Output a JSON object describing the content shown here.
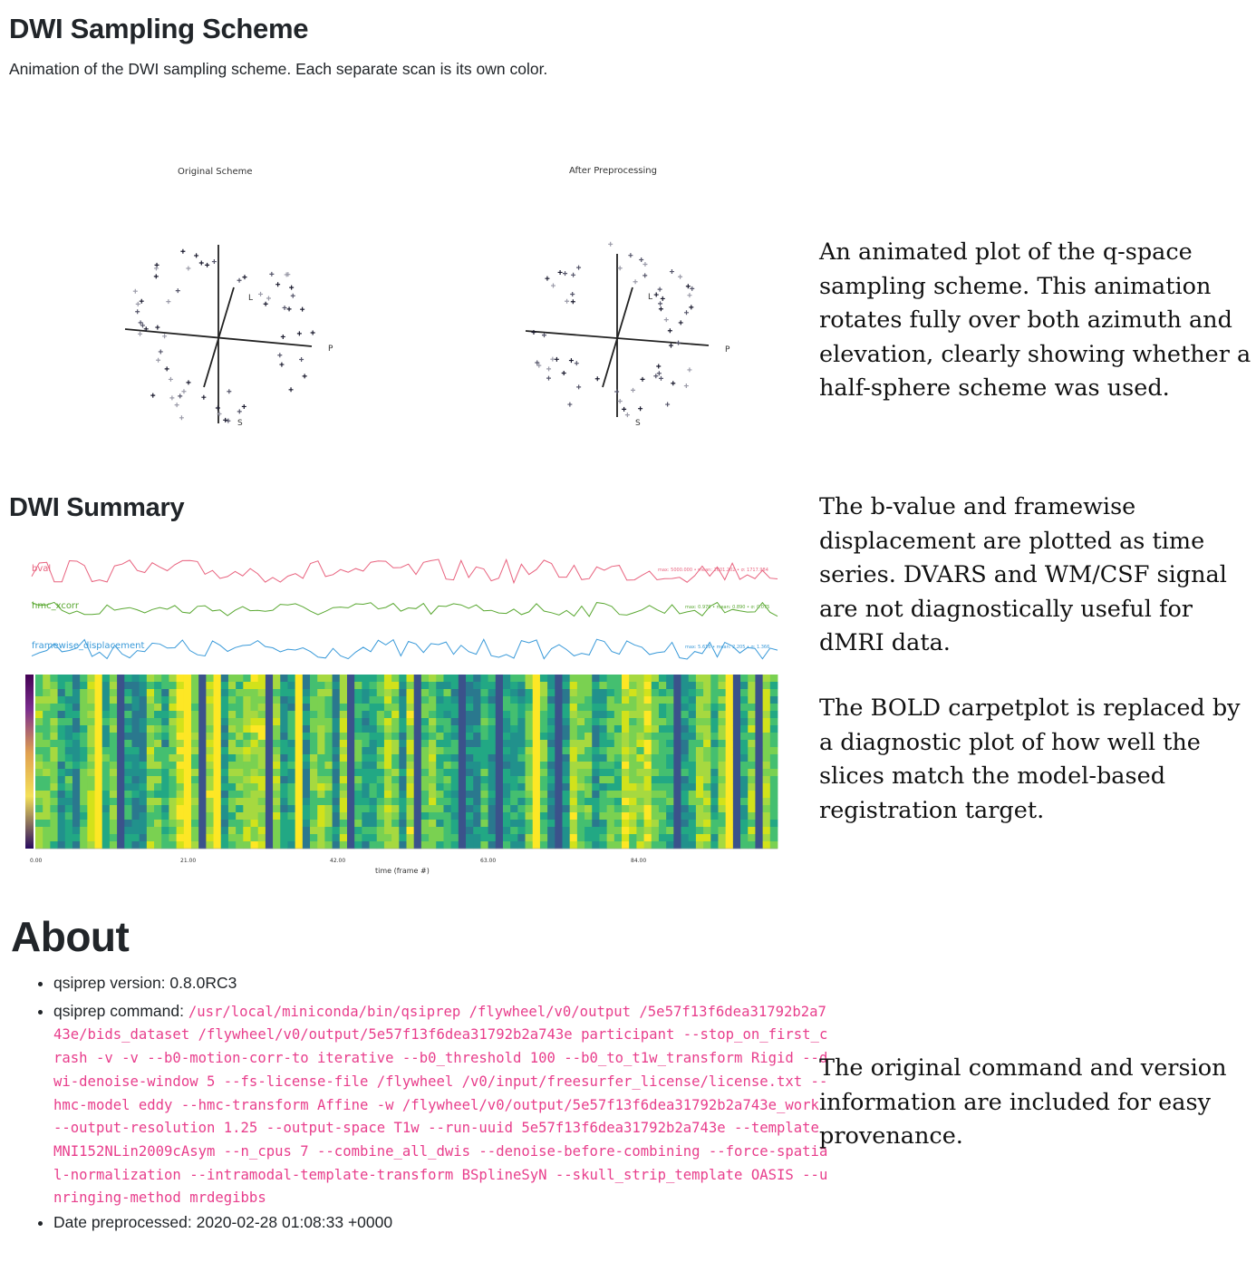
{
  "sampling": {
    "heading": "DWI Sampling Scheme",
    "description": "Animation of the DWI sampling scheme. Each separate scan is its own color.",
    "left_title": "Original Scheme",
    "right_title": "After Preprocessing",
    "axis_labels": {
      "p": "P",
      "l": "L",
      "s": "S"
    },
    "note": "An animated plot of the q-space sampling scheme. This animation rotates fully over both azimuth and elevation, clearly showing whether a half-sphere scheme was used."
  },
  "summary": {
    "heading": "DWI Summary",
    "note1": "The b-value and framewise displacement are plotted as time series. DVARS and WM/CSF signal are not diagnostically useful for dMRI data.",
    "note2": "The BOLD carpetplot is replaced by a diagnostic plot of how well the slices match the model-based registration target.",
    "series": [
      {
        "name": "bval",
        "stats": "max: 5000.000 • mean: 2601.202 • σ: 1717.984",
        "color": "#e8627e"
      },
      {
        "name": "hmc_xcorr",
        "stats": "max: 0.979 • mean: 0.890 • σ: 0.075",
        "color": "#5aa832"
      },
      {
        "name": "framewise_displacement",
        "stats": "max: 5.616 • mean: 2.205 • σ: 1.366",
        "color": "#3a9ad9"
      }
    ],
    "xlabel": "time (frame #)",
    "xticks": [
      "0.00",
      "21.00",
      "42.00",
      "63.00",
      "84.00"
    ],
    "colors": {
      "bval": "#e8627e",
      "hmc_xcorr": "#5aa832",
      "fd": "#3a9ad9"
    }
  },
  "about": {
    "heading": "About",
    "version_label": "qsiprep version: ",
    "version_value": "0.8.0RC3",
    "command_label": "qsiprep command: ",
    "command_value": "/usr/local/miniconda/bin/qsiprep /flywheel/v0/output /5e57f13f6dea31792b2a743e/bids_dataset /flywheel/v0/output/5e57f13f6dea31792b2a743e participant --stop_on_first_crash -v -v --b0-motion-corr-to iterative --b0_threshold 100 --b0_to_t1w_transform Rigid --dwi-denoise-window 5 --fs-license-file /flywheel /v0/input/freesurfer_license/license.txt --hmc-model eddy --hmc-transform Affine -w /flywheel/v0/output/5e57f13f6dea31792b2a743e_work --output-resolution 1.25 --output-space T1w --run-uuid 5e57f13f6dea31792b2a743e --template MNI152NLin2009cAsym --n_cpus 7 --combine_all_dwis --denoise-before-combining --force-spatial-normalization --intramodal-template-transform BSplineSyN --skull_strip_template OASIS --unringing-method mrdegibbs",
    "date_label": "Date preprocessed: ",
    "date_value": "2020-02-28 01:08:33 +0000",
    "note": "The original command and version information are included for easy provenance."
  }
}
